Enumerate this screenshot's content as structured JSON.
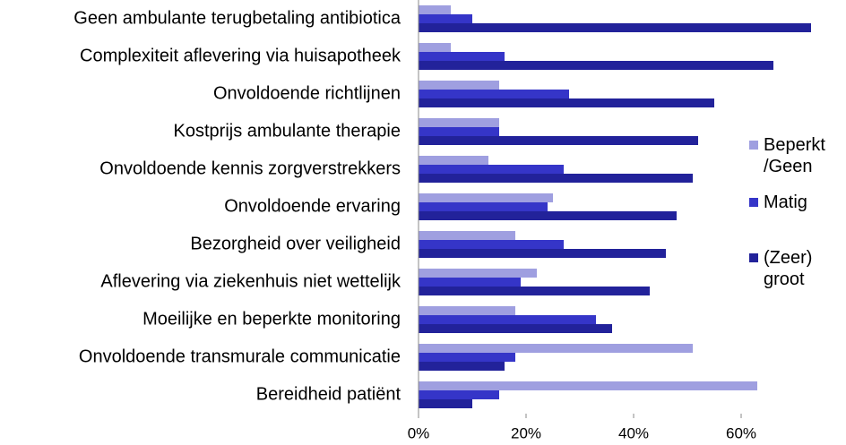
{
  "chart_data": {
    "type": "barh",
    "categories": [
      "Geen ambulante terugbetaling antibiotica",
      "Complexiteit aflevering via huisapotheek",
      "Onvoldoende richtlijnen",
      "Kostprijs ambulante therapie",
      "Onvoldoende kennis zorgverstrekkers",
      "Onvoldoende ervaring",
      "Bezorgheid over veiligheid",
      "Aflevering via ziekenhuis niet wettelijk",
      "Moeilijke en beperkte monitoring",
      "Onvoldoende transmurale communicatie",
      "Bereidheid patiënt"
    ],
    "series": [
      {
        "name": "Beperkt /Geen",
        "color": "#9f9fe0",
        "values": [
          6,
          6,
          15,
          15,
          13,
          25,
          18,
          22,
          18,
          51,
          63
        ]
      },
      {
        "name": "Matig",
        "color": "#3535c8",
        "values": [
          10,
          16,
          28,
          15,
          27,
          24,
          27,
          19,
          33,
          18,
          15
        ]
      },
      {
        "name": "(Zeer) groot",
        "color": "#22229a",
        "values": [
          73,
          66,
          55,
          52,
          51,
          48,
          46,
          43,
          36,
          16,
          10
        ]
      }
    ],
    "xlim": [
      0,
      75
    ],
    "xticks": [
      {
        "value": 0,
        "label": "0%"
      },
      {
        "value": 20,
        "label": "20%"
      },
      {
        "value": 40,
        "label": "40%"
      },
      {
        "value": 60,
        "label": "60%"
      }
    ],
    "legend": "right"
  }
}
